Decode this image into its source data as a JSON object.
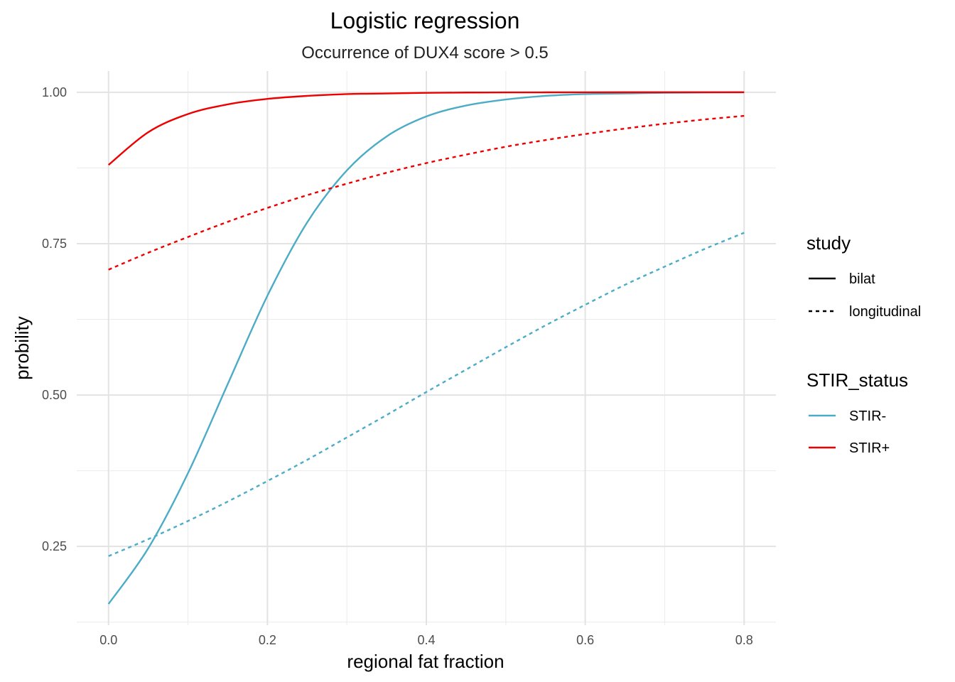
{
  "chart_data": {
    "type": "line",
    "title": "Logistic regression",
    "subtitle": "Occurrence of DUX4 score > 0.5",
    "xlabel": "regional fat fraction",
    "ylabel": "probility",
    "xlim": [
      -0.04,
      0.84
    ],
    "ylim": [
      0.12,
      1.035
    ],
    "x_ticks": [
      {
        "value": 0.0,
        "label": "0.0"
      },
      {
        "value": 0.2,
        "label": "0.2"
      },
      {
        "value": 0.4,
        "label": "0.4"
      },
      {
        "value": 0.6,
        "label": "0.6"
      },
      {
        "value": 0.8,
        "label": "0.8"
      }
    ],
    "y_ticks": [
      {
        "value": 0.25,
        "label": "0.25"
      },
      {
        "value": 0.5,
        "label": "0.50"
      },
      {
        "value": 0.75,
        "label": "0.75"
      },
      {
        "value": 1.0,
        "label": "1.00"
      }
    ],
    "grid": true,
    "legends": [
      {
        "title": "study",
        "entries": [
          {
            "label": "bilat",
            "dash": "solid"
          },
          {
            "label": "longitudinal",
            "dash": "dashed"
          }
        ]
      },
      {
        "title": "STIR_status",
        "entries": [
          {
            "label": "STIR-",
            "color": "#4bacc6"
          },
          {
            "label": "STIR+",
            "color": "#ee0000"
          }
        ]
      }
    ],
    "legend_position": "right",
    "series": [
      {
        "study": "bilat",
        "stir_status": "STIR-",
        "color": "#4bacc6",
        "dash": "solid",
        "x": [
          0.0,
          0.05,
          0.1,
          0.15,
          0.2,
          0.25,
          0.3,
          0.35,
          0.4,
          0.45,
          0.5,
          0.55,
          0.6,
          0.65,
          0.7,
          0.75,
          0.8
        ],
        "y": [
          0.155,
          0.247,
          0.371,
          0.518,
          0.664,
          0.785,
          0.871,
          0.927,
          0.96,
          0.978,
          0.988,
          0.994,
          0.997,
          0.998,
          0.999,
          0.9995,
          0.9998
        ]
      },
      {
        "study": "longitudinal",
        "stir_status": "STIR-",
        "color": "#4bacc6",
        "dash": "dashed",
        "x": [
          0.0,
          0.05,
          0.1,
          0.15,
          0.2,
          0.25,
          0.3,
          0.35,
          0.4,
          0.45,
          0.5,
          0.55,
          0.6,
          0.65,
          0.7,
          0.75,
          0.8
        ],
        "y": [
          0.234,
          0.262,
          0.292,
          0.324,
          0.358,
          0.393,
          0.43,
          0.467,
          0.505,
          0.542,
          0.579,
          0.615,
          0.649,
          0.682,
          0.712,
          0.741,
          0.768
        ]
      },
      {
        "study": "bilat",
        "stir_status": "STIR+",
        "color": "#ee0000",
        "dash": "solid",
        "x": [
          0.0,
          0.05,
          0.1,
          0.15,
          0.2,
          0.25,
          0.3,
          0.35,
          0.4,
          0.45,
          0.5,
          0.55,
          0.6,
          0.65,
          0.7,
          0.75,
          0.8
        ],
        "y": [
          0.88,
          0.934,
          0.964,
          0.98,
          0.989,
          0.994,
          0.997,
          0.998,
          0.999,
          0.9995,
          0.9997,
          0.9998,
          0.9999,
          0.99995,
          0.99997,
          0.99998,
          0.99999
        ]
      },
      {
        "study": "longitudinal",
        "stir_status": "STIR+",
        "color": "#ee0000",
        "dash": "dashed",
        "x": [
          0.0,
          0.05,
          0.1,
          0.15,
          0.2,
          0.25,
          0.3,
          0.35,
          0.4,
          0.45,
          0.5,
          0.55,
          0.6,
          0.65,
          0.7,
          0.75,
          0.8
        ],
        "y": [
          0.707,
          0.735,
          0.761,
          0.786,
          0.809,
          0.83,
          0.849,
          0.867,
          0.883,
          0.897,
          0.91,
          0.921,
          0.931,
          0.94,
          0.948,
          0.955,
          0.961
        ]
      }
    ]
  }
}
